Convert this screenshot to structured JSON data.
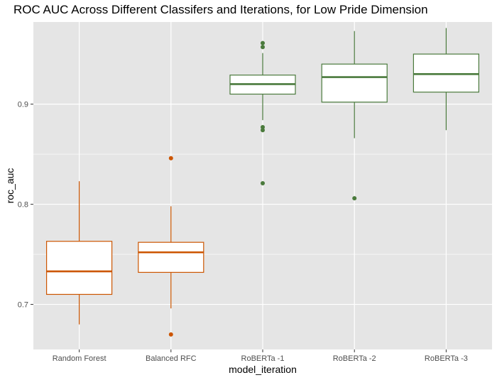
{
  "chart_data": {
    "type": "boxplot",
    "title": "ROC AUC Across Different Classifers and Iterations, for Low Pride Dimension",
    "xlabel": "model_iteration",
    "ylabel": "roc_auc",
    "ylim": [
      0.655,
      0.982
    ],
    "y_ticks": [
      0.7,
      0.8,
      0.9
    ],
    "y_tick_labels": [
      "0.7",
      "0.8",
      "0.9"
    ],
    "grid": true,
    "colors": {
      "classical": "#cc5500",
      "roberta": "#4a7a3c",
      "panel": "#e5e5e5",
      "grid": "#ffffff"
    },
    "categories": [
      "Random Forest",
      "Balanced RFC",
      "RoBERTa -1",
      "RoBERTa -2",
      "RoBERTa -3"
    ],
    "boxes": [
      {
        "category": "Random Forest",
        "group": "classical",
        "whisker_low": 0.68,
        "q1": 0.71,
        "median": 0.733,
        "q3": 0.763,
        "whisker_high": 0.823,
        "outliers": []
      },
      {
        "category": "Balanced RFC",
        "group": "classical",
        "whisker_low": 0.696,
        "q1": 0.732,
        "median": 0.752,
        "q3": 0.762,
        "whisker_high": 0.798,
        "outliers": [
          0.846,
          0.67
        ]
      },
      {
        "category": "RoBERTa -1",
        "group": "roberta",
        "whisker_low": 0.884,
        "q1": 0.91,
        "median": 0.92,
        "q3": 0.929,
        "whisker_high": 0.951,
        "outliers": [
          0.961,
          0.957,
          0.877,
          0.874,
          0.821
        ]
      },
      {
        "category": "RoBERTa -2",
        "group": "roberta",
        "whisker_low": 0.866,
        "q1": 0.902,
        "median": 0.927,
        "q3": 0.94,
        "whisker_high": 0.973,
        "outliers": [
          0.806
        ]
      },
      {
        "category": "RoBERTa -3",
        "group": "roberta",
        "whisker_low": 0.874,
        "q1": 0.912,
        "median": 0.93,
        "q3": 0.95,
        "whisker_high": 0.976,
        "outliers": []
      }
    ]
  }
}
